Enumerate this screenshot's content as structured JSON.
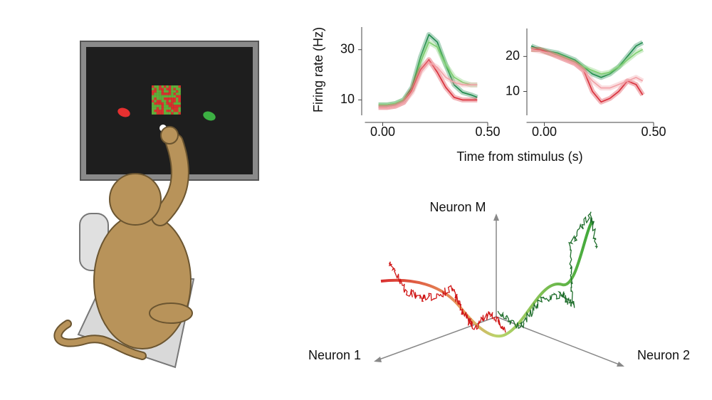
{
  "chart_data": [
    {
      "type": "line",
      "ylabel": "Firing rate (Hz)",
      "xlabel": "Time from stimulus (s)",
      "x": [
        -0.02,
        0.02,
        0.06,
        0.1,
        0.14,
        0.18,
        0.22,
        0.26,
        0.3,
        0.34,
        0.38,
        0.42,
        0.45
      ],
      "xlim": [
        -0.1,
        0.5
      ],
      "xticks": [
        {
          "value": 0,
          "label": "0.00"
        },
        {
          "value": 0.5,
          "label": "0.50"
        }
      ],
      "ylim": [
        5,
        39
      ],
      "yticks": [
        10,
        30
      ],
      "series": [
        {
          "color": "#1e8a4c",
          "values": [
            8,
            8,
            8.5,
            10,
            15,
            27,
            36,
            33,
            24,
            16,
            13,
            12,
            11
          ]
        },
        {
          "color": "#7fcf6f",
          "values": [
            8,
            8,
            8.5,
            10,
            14,
            25,
            33,
            31,
            24,
            19,
            17,
            16,
            16
          ]
        },
        {
          "color": "#d92f3a",
          "values": [
            7,
            7,
            7.5,
            9,
            14,
            22,
            26,
            21,
            15,
            11,
            10,
            10,
            10
          ]
        },
        {
          "color": "#f2a0a6",
          "values": [
            7,
            7,
            7.5,
            9,
            13,
            21,
            25,
            23,
            19,
            17,
            16,
            16,
            16
          ]
        }
      ]
    },
    {
      "type": "line",
      "x": [
        -0.06,
        -0.02,
        0.02,
        0.06,
        0.1,
        0.14,
        0.18,
        0.22,
        0.26,
        0.3,
        0.34,
        0.38,
        0.42,
        0.45
      ],
      "xlim": [
        -0.08,
        0.5
      ],
      "xticks": [
        {
          "value": 0,
          "label": "0.00"
        },
        {
          "value": 0.5,
          "label": "0.50"
        }
      ],
      "ylim": [
        4,
        28
      ],
      "yticks": [
        10,
        20
      ],
      "series": [
        {
          "color": "#1e8a4c",
          "values": [
            23,
            22,
            21.5,
            21,
            20,
            19,
            17,
            15,
            14,
            15,
            17,
            20,
            23,
            24
          ]
        },
        {
          "color": "#7fcf6f",
          "values": [
            22,
            22,
            21,
            20.5,
            19.5,
            18.5,
            17,
            16,
            15,
            15.5,
            17,
            19,
            21,
            22
          ]
        },
        {
          "color": "#d92f3a",
          "values": [
            22,
            22,
            21,
            20,
            19,
            18,
            16,
            10,
            7,
            8,
            10,
            13,
            12,
            9
          ]
        },
        {
          "color": "#f2a0a6",
          "values": [
            22,
            21.5,
            21,
            20,
            19,
            18,
            16,
            13,
            11,
            11,
            12,
            13,
            14,
            13
          ]
        }
      ]
    }
  ],
  "diagram": {
    "axes": [
      {
        "label": "Neuron M"
      },
      {
        "label": "Neuron 1"
      },
      {
        "label": "Neuron 2"
      }
    ]
  }
}
